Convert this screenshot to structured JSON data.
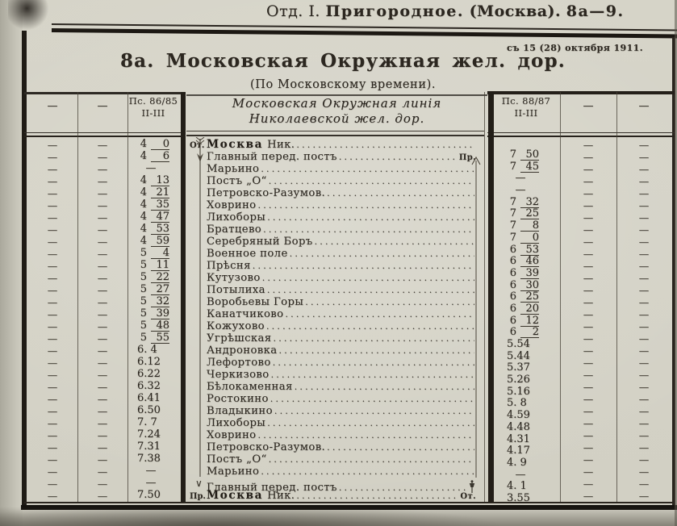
{
  "page_header": {
    "section": "Отд. I.",
    "title": "Пригородное.",
    "place": "(Москва).",
    "pages": "8а—9."
  },
  "effective_date": "съ 15 (28) октября 1911.",
  "table_title": "8а. Московская Окружная жел. дор.",
  "table_subtitle": "(По Московскому времени).",
  "left_group": {
    "header_dash": "—",
    "train_no": "Пс. 86/85",
    "classes": "II-III"
  },
  "center_header": {
    "line1": "Московская Окружная линія",
    "line2": "Николаевской жел. дор."
  },
  "right_group": {
    "header_dash": "—",
    "train_no": "Пс. 88/87",
    "classes": "II-III"
  },
  "dash_char": "—",
  "stations": [
    {
      "prefix": "От.",
      "name": "Москва",
      "suffix": "Ник.",
      "bold": true
    },
    {
      "name": "Главный перед. постъ",
      "end_label": "Пр."
    },
    {
      "name": "Марьино"
    },
    {
      "name": "Постъ „О“"
    },
    {
      "name": "Петровско-Разумов."
    },
    {
      "name": "Ховрино"
    },
    {
      "name": "Лихоборы"
    },
    {
      "name": "Братцево"
    },
    {
      "name": "Серебряный Боръ"
    },
    {
      "name": "Военное поле"
    },
    {
      "name": "Прѣсня"
    },
    {
      "name": "Кутузово"
    },
    {
      "name": "Потылиха"
    },
    {
      "name": "Воробьевы Горы"
    },
    {
      "name": "Канатчиково"
    },
    {
      "name": "Кожухово"
    },
    {
      "name": "Угрѣшская"
    },
    {
      "name": "Андроновка"
    },
    {
      "name": "Лефортово"
    },
    {
      "name": "Черкизово"
    },
    {
      "name": "Бѣлокаменная"
    },
    {
      "name": "Ростокино"
    },
    {
      "name": "Владыкино"
    },
    {
      "name": "Лихоборы"
    },
    {
      "name": "Ховрино"
    },
    {
      "name": "Петровско-Разумов."
    },
    {
      "name": "Постъ „О“"
    },
    {
      "name": "Марьино"
    },
    {
      "name": "Главный перед. постъ",
      "left_mark": "∨",
      "end_icon": "semaphore-icon"
    },
    {
      "prefix": "Пр.",
      "name": "Москва",
      "suffix": "Ник.",
      "bold": true,
      "end_label": "От."
    }
  ],
  "down_times": [
    "4 0",
    "4 6",
    "—",
    "4 13",
    "4 21",
    "4 35",
    "4 47",
    "4 53",
    "4 59",
    "5 4",
    "5 11",
    "5 22",
    "5 27",
    "5 32",
    "5 39",
    "5 48",
    "5 55",
    "6. 4",
    "6.12",
    "6.22",
    "6.32",
    "6.41",
    "6.50",
    "7. 7",
    "7.24",
    "7.31",
    "7.38",
    "—",
    "—",
    "7.50"
  ],
  "up_times": [
    "7 50",
    "7 45",
    "—",
    "—",
    "7 32",
    "7 25",
    "7 8",
    "7 0",
    "6 53",
    "6 46",
    "6 39",
    "6 30",
    "6 25",
    "6 20",
    "6 12",
    "6 2",
    "5.54",
    "5.44",
    "5.37",
    "5.26",
    "5.16",
    "5. 8",
    "4.59",
    "4.48",
    "4.31",
    "4.17",
    "4. 9",
    "—",
    "4. 1",
    "3.55"
  ],
  "icons": {
    "route_down_arrow": "feathered-down-arrow",
    "route_up_arrow": "∧",
    "branch_mark": "∨",
    "semaphore": "semaphore-post"
  },
  "colors": {
    "paper": "#d5d3c7",
    "ink": "#2c2720",
    "rule": "#221e18"
  }
}
